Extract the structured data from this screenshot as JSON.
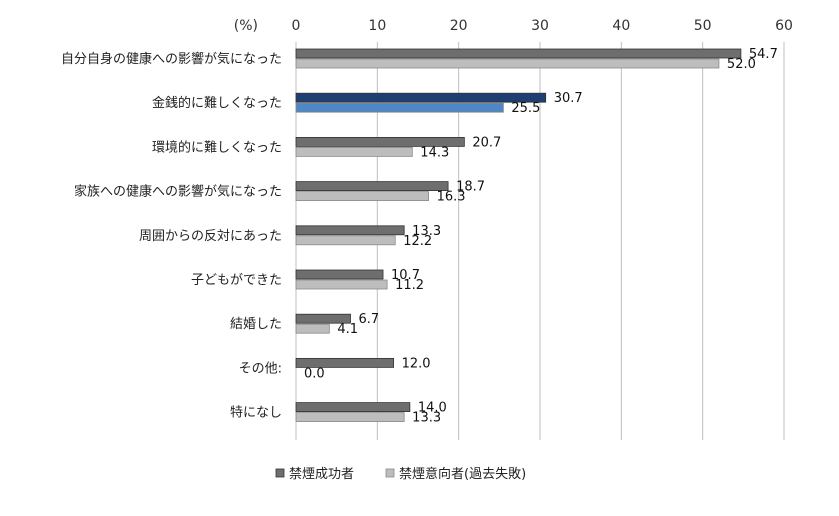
{
  "chart_data": {
    "type": "bar",
    "orientation": "horizontal",
    "unit_label": "(%)",
    "xlim": [
      0,
      60
    ],
    "ticks": [
      0,
      10,
      20,
      30,
      40,
      50,
      60
    ],
    "grid": true,
    "legend_position": "bottom",
    "categories": [
      "自分自身の健康への影響が気になった",
      "金銭的に難しくなった",
      "環境的に難しくなった",
      "家族への健康への影響が気になった",
      "周囲からの反対にあった",
      "子どもができた",
      "結婚した",
      "その他:",
      "特になし"
    ],
    "series": [
      {
        "name": "禁煙成功者",
        "values": [
          54.7,
          30.7,
          20.7,
          18.7,
          13.3,
          10.7,
          6.7,
          12.0,
          14.0
        ],
        "labels": [
          "54.7",
          "30.7",
          "20.7",
          "18.7",
          "13.3",
          "10.7",
          "6.7",
          "12.0",
          "14.0"
        ],
        "color": "#6e6e6e"
      },
      {
        "name": "禁煙意向者(過去失敗)",
        "values": [
          52.0,
          25.5,
          14.3,
          16.3,
          12.2,
          11.2,
          4.1,
          0.0,
          13.3
        ],
        "labels": [
          "52.0",
          "25.5",
          "14.3",
          "16.3",
          "12.2",
          "11.2",
          "4.1",
          "0.0",
          "13.3"
        ],
        "color": "#bdbdbd"
      }
    ],
    "highlight": {
      "category_index": 1,
      "colors": [
        "#1f3f73",
        "#4f86c6"
      ]
    }
  }
}
